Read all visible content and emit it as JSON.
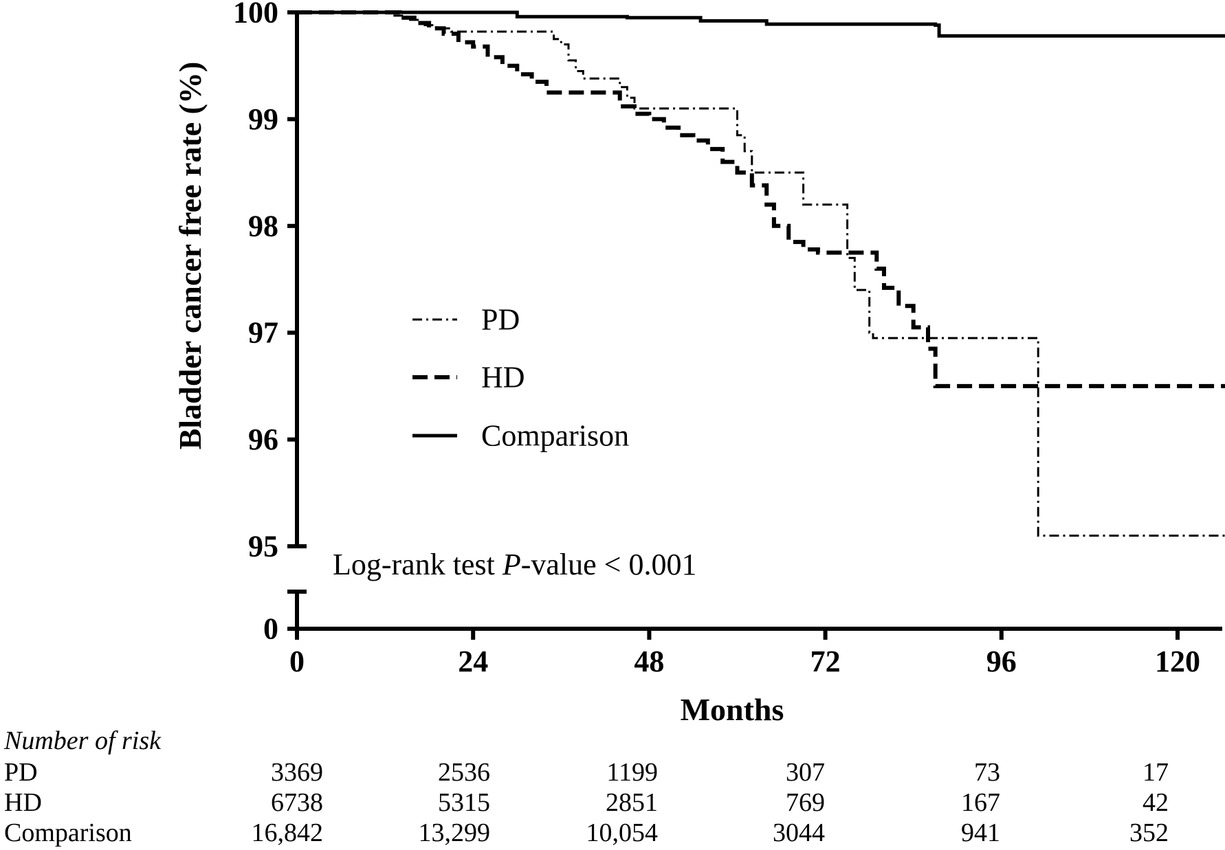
{
  "chart_data": {
    "type": "line",
    "subtype": "kaplan-meier step curve",
    "ylabel": "Bladder cancer free rate (%)",
    "xlabel": "Months",
    "x_ticks": [
      "0",
      "24",
      "48",
      "72",
      "96",
      "120"
    ],
    "x_tick_values": [
      0,
      24,
      48,
      72,
      96,
      120
    ],
    "xlim": [
      0,
      130
    ],
    "y_ticks": [
      "95",
      "96",
      "97",
      "98",
      "99",
      "100"
    ],
    "y_tick_values": [
      95,
      96,
      97,
      98,
      99,
      100
    ],
    "y_break_tick": "0",
    "ylim": [
      95,
      100
    ],
    "axis_break": true,
    "grid": false,
    "legend_position": "center-left",
    "annotation": {
      "prefix": "Log-rank test ",
      "p": "P",
      "suffix": "-value < 0.001"
    },
    "series": [
      {
        "name": "PD",
        "line_style": "dash-dot",
        "color": "#000000",
        "points": [
          [
            0,
            100
          ],
          [
            11,
            100
          ],
          [
            13,
            99.97
          ],
          [
            15,
            99.93
          ],
          [
            17,
            99.88
          ],
          [
            19,
            99.85
          ],
          [
            21,
            99.82
          ],
          [
            34,
            99.82
          ],
          [
            35,
            99.75
          ],
          [
            36,
            99.7
          ],
          [
            37,
            99.55
          ],
          [
            38,
            99.45
          ],
          [
            39,
            99.38
          ],
          [
            43,
            99.38
          ],
          [
            44,
            99.3
          ],
          [
            45,
            99.2
          ],
          [
            46,
            99.1
          ],
          [
            59,
            99.1
          ],
          [
            60,
            98.85
          ],
          [
            61,
            98.7
          ],
          [
            62,
            98.5
          ],
          [
            68,
            98.5
          ],
          [
            69,
            98.2
          ],
          [
            74,
            98.2
          ],
          [
            75,
            97.7
          ],
          [
            76,
            97.4
          ],
          [
            77,
            97.4
          ],
          [
            78,
            97.0
          ],
          [
            78.5,
            96.95
          ],
          [
            100,
            96.95
          ],
          [
            101,
            95.1
          ],
          [
            130,
            95.1
          ]
        ]
      },
      {
        "name": "HD",
        "line_style": "dashed",
        "color": "#000000",
        "points": [
          [
            0,
            100
          ],
          [
            11,
            100
          ],
          [
            14,
            99.95
          ],
          [
            16,
            99.9
          ],
          [
            18,
            99.85
          ],
          [
            20,
            99.8
          ],
          [
            22,
            99.72
          ],
          [
            24,
            99.68
          ],
          [
            26,
            99.58
          ],
          [
            28,
            99.5
          ],
          [
            30,
            99.42
          ],
          [
            32,
            99.35
          ],
          [
            34,
            99.25
          ],
          [
            42,
            99.25
          ],
          [
            44,
            99.12
          ],
          [
            46,
            99.05
          ],
          [
            48,
            99.0
          ],
          [
            50,
            98.92
          ],
          [
            52,
            98.85
          ],
          [
            54,
            98.8
          ],
          [
            56,
            98.72
          ],
          [
            58,
            98.6
          ],
          [
            60,
            98.5
          ],
          [
            62,
            98.38
          ],
          [
            64,
            98.2
          ],
          [
            65,
            98.0
          ],
          [
            67,
            97.85
          ],
          [
            69,
            97.78
          ],
          [
            71,
            97.75
          ],
          [
            77,
            97.75
          ],
          [
            79,
            97.6
          ],
          [
            80,
            97.42
          ],
          [
            82,
            97.25
          ],
          [
            84,
            97.05
          ],
          [
            86,
            96.85
          ],
          [
            87,
            96.5
          ],
          [
            130,
            96.5
          ]
        ]
      },
      {
        "name": "Comparison",
        "line_style": "solid",
        "color": "#000000",
        "points": [
          [
            0,
            100
          ],
          [
            30,
            99.96
          ],
          [
            45,
            99.95
          ],
          [
            55,
            99.92
          ],
          [
            64,
            99.89
          ],
          [
            87,
            99.88
          ],
          [
            87.5,
            99.78
          ],
          [
            130,
            99.78
          ]
        ]
      }
    ],
    "risk_table": {
      "title": "Number of risk",
      "columns": [
        "0",
        "24",
        "48",
        "72",
        "96",
        "120"
      ],
      "rows": [
        {
          "label": "PD",
          "values": [
            "3369",
            "2536",
            "1199",
            "307",
            "73",
            "17"
          ]
        },
        {
          "label": "HD",
          "values": [
            "6738",
            "5315",
            "2851",
            "769",
            "167",
            "42"
          ]
        },
        {
          "label": "Comparison",
          "values": [
            "16,842",
            "13,299",
            "10,054",
            "3044",
            "941",
            "352"
          ]
        }
      ]
    }
  }
}
